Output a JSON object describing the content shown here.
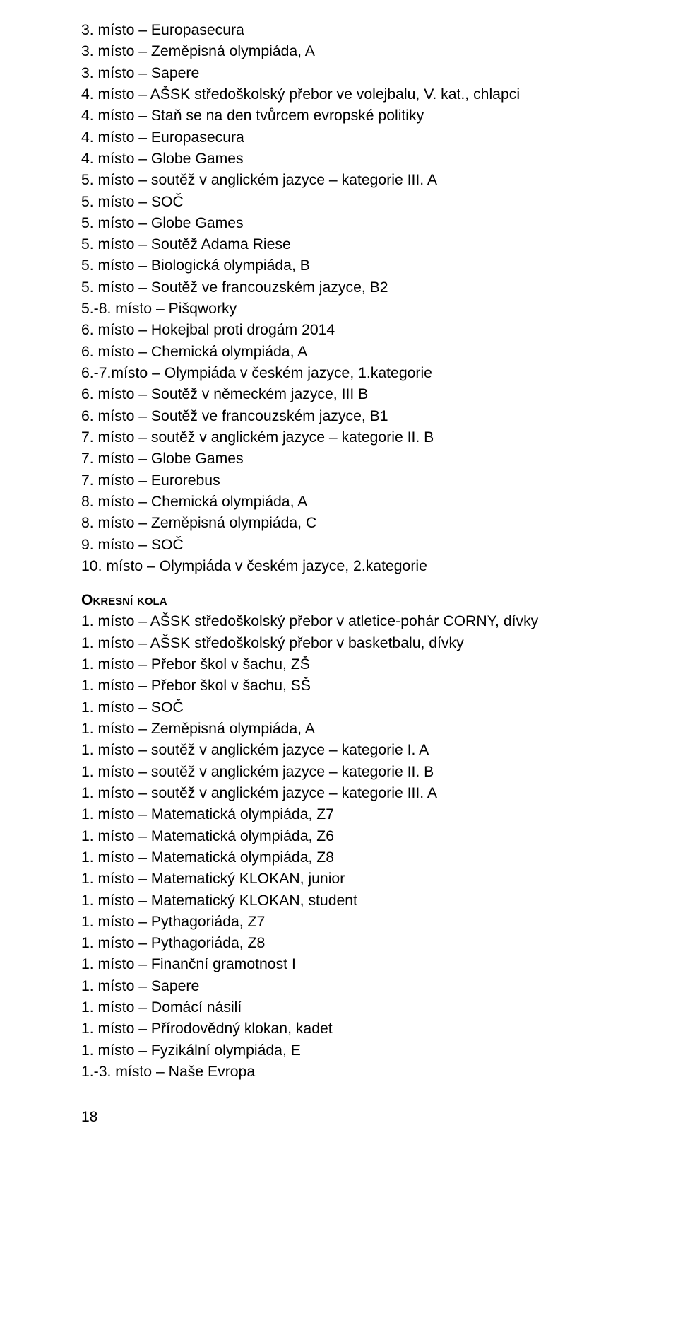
{
  "text_color": "#000000",
  "background_color": "#ffffff",
  "font_family": "Arial, Helvetica, sans-serif",
  "font_size_pt": 16,
  "block1": [
    "3. místo – Europasecura",
    "3. místo – Zeměpisná olympiáda, A",
    "3. místo – Sapere",
    "4. místo – AŠSK středoškolský přebor ve volejbalu, V. kat., chlapci",
    "4. místo – Staň se na den tvůrcem evropské politiky",
    "4. místo – Europasecura",
    "4. místo – Globe Games",
    "5. místo – soutěž v anglickém jazyce – kategorie III. A",
    "5. místo – SOČ",
    "5. místo – Globe Games",
    "5. místo – Soutěž Adama Riese",
    "5. místo – Biologická olympiáda, B",
    "5. místo – Soutěž ve francouzském jazyce, B2",
    "5.-8. místo – Pišqworky",
    "6. místo – Hokejbal proti drogám 2014",
    "6. místo – Chemická olympiáda, A",
    "6.-7.místo – Olympiáda v českém jazyce, 1.kategorie",
    "6. místo – Soutěž v německém jazyce, III B",
    "6. místo – Soutěž ve francouzském jazyce, B1",
    "7. místo – soutěž v anglickém jazyce – kategorie II. B",
    "7. místo – Globe Games",
    "7. místo – Eurorebus",
    "8. místo – Chemická olympiáda, A",
    "8. místo – Zeměpisná olympiáda, C",
    "9. místo – SOČ",
    "10. místo – Olympiáda v českém jazyce, 2.kategorie"
  ],
  "section_heading": "Okresní kola",
  "block2": [
    "1. místo – AŠSK středoškolský přebor v atletice-pohár CORNY, dívky",
    "1. místo – AŠSK středoškolský přebor v basketbalu, dívky",
    "1. místo – Přebor škol v šachu, ZŠ",
    "1. místo – Přebor škol v šachu, SŠ",
    "1. místo – SOČ",
    "1. místo – Zeměpisná olympiáda, A",
    "1. místo – soutěž v anglickém jazyce – kategorie I. A",
    "1. místo – soutěž v anglickém jazyce – kategorie II. B",
    "1. místo – soutěž v anglickém jazyce – kategorie III. A",
    "1. místo – Matematická olympiáda, Z7",
    "1. místo – Matematická olympiáda, Z6",
    "1. místo – Matematická olympiáda, Z8",
    "1. místo – Matematický KLOKAN, junior",
    "1. místo – Matematický KLOKAN, student",
    "1. místo – Pythagoriáda, Z7",
    "1. místo – Pythagoriáda, Z8",
    "1. místo – Finanční gramotnost I",
    "1. místo – Sapere",
    "1. místo – Domácí násilí",
    "1. místo – Přírodovědný klokan, kadet",
    "1. místo – Fyzikální olympiáda, E",
    "1.-3. místo – Naše Evropa"
  ],
  "page_number": "18"
}
